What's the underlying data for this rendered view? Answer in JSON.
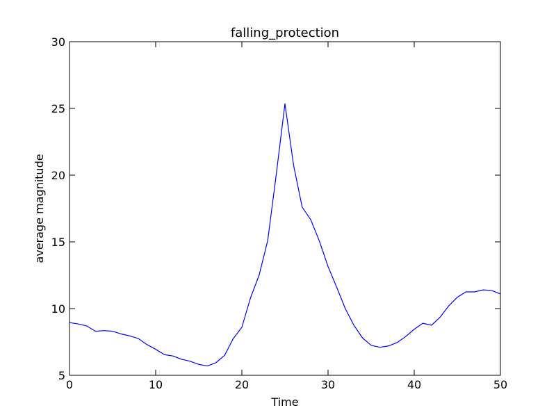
{
  "chart_data": {
    "type": "line",
    "title": "falling_protection",
    "xlabel": "Time",
    "ylabel": "average magnitude",
    "xlim": [
      0,
      50
    ],
    "ylim": [
      5,
      30
    ],
    "xticks": [
      0,
      10,
      20,
      30,
      40,
      50
    ],
    "yticks": [
      5,
      10,
      15,
      20,
      25,
      30
    ],
    "grid": false,
    "line_color": "#0000ff",
    "x": [
      0,
      1,
      2,
      3,
      4,
      5,
      6,
      7,
      8,
      9,
      10,
      11,
      12,
      13,
      14,
      15,
      16,
      17,
      18,
      19,
      20,
      21,
      22,
      23,
      24,
      25,
      26,
      27,
      28,
      29,
      30,
      31,
      32,
      33,
      34,
      35,
      36,
      37,
      38,
      39,
      40,
      41,
      42,
      43,
      44,
      45,
      46,
      47,
      48,
      49,
      50
    ],
    "y": [
      8.95,
      8.85,
      8.7,
      8.3,
      8.35,
      8.3,
      8.1,
      7.95,
      7.75,
      7.3,
      6.95,
      6.55,
      6.45,
      6.2,
      6.05,
      5.82,
      5.7,
      5.95,
      6.5,
      7.75,
      8.6,
      10.8,
      12.5,
      15.1,
      20.1,
      25.35,
      20.75,
      17.6,
      16.65,
      15.05,
      13.15,
      11.6,
      10.0,
      8.75,
      7.8,
      7.25,
      7.1,
      7.2,
      7.45,
      7.9,
      8.45,
      8.9,
      8.75,
      9.35,
      10.2,
      10.85,
      11.25,
      11.25,
      11.4,
      11.35,
      11.1
    ]
  }
}
